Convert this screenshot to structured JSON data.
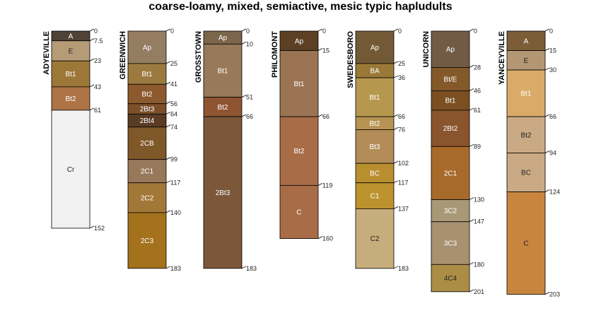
{
  "chart_data": {
    "type": "soil-profile",
    "title": "coarse-loamy, mixed, semiactive, mesic typic hapludults",
    "depth_unit": "cm",
    "profiles": [
      {
        "name": "ADYEVILLE",
        "horizons": [
          {
            "name": "A",
            "top": 0,
            "bottom": 7.5,
            "color": "#4e4336",
            "text": "#ffffff"
          },
          {
            "name": "E",
            "top": 7.5,
            "bottom": 23,
            "color": "#b59b76",
            "text": "#222222"
          },
          {
            "name": "Bt1",
            "top": 23,
            "bottom": 43,
            "color": "#9c7738",
            "text": "#ffffff"
          },
          {
            "name": "Bt2",
            "top": 43,
            "bottom": 61,
            "color": "#ae7447",
            "text": "#ffffff"
          },
          {
            "name": "Cr",
            "top": 61,
            "bottom": 152,
            "color": "#f2f2f2",
            "text": "#222222"
          }
        ]
      },
      {
        "name": "GREENWICH",
        "horizons": [
          {
            "name": "Ap",
            "top": 0,
            "bottom": 25,
            "color": "#957d62",
            "text": "#ffffff"
          },
          {
            "name": "Bt1",
            "top": 25,
            "bottom": 41,
            "color": "#9c7a3f",
            "text": "#ffffff"
          },
          {
            "name": "Bt2",
            "top": 41,
            "bottom": 56,
            "color": "#8c5a2e",
            "text": "#ffffff"
          },
          {
            "name": "2Bt3",
            "top": 56,
            "bottom": 64,
            "color": "#7b4f29",
            "text": "#ffffff"
          },
          {
            "name": "2Bt4",
            "top": 64,
            "bottom": 74,
            "color": "#5a3c24",
            "text": "#ffffff"
          },
          {
            "name": "2CB",
            "top": 74,
            "bottom": 99,
            "color": "#7f5829",
            "text": "#ffffff"
          },
          {
            "name": "2C1",
            "top": 99,
            "bottom": 117,
            "color": "#98785a",
            "text": "#ffffff"
          },
          {
            "name": "2C2",
            "top": 117,
            "bottom": 140,
            "color": "#a27839",
            "text": "#ffffff"
          },
          {
            "name": "2C3",
            "top": 140,
            "bottom": 183,
            "color": "#a4711d",
            "text": "#ffffff"
          }
        ]
      },
      {
        "name": "GROSSTOWN",
        "horizons": [
          {
            "name": "Ap",
            "top": 0,
            "bottom": 10,
            "color": "#7b654b",
            "text": "#ffffff"
          },
          {
            "name": "Bt1",
            "top": 10,
            "bottom": 51,
            "color": "#98795a",
            "text": "#ffffff"
          },
          {
            "name": "Bt2",
            "top": 51,
            "bottom": 66,
            "color": "#8e5530",
            "text": "#ffffff"
          },
          {
            "name": "2Bt3",
            "top": 66,
            "bottom": 183,
            "color": "#7c573a",
            "text": "#ffffff"
          }
        ]
      },
      {
        "name": "PHILOMONT",
        "horizons": [
          {
            "name": "Ap",
            "top": 0,
            "bottom": 15,
            "color": "#5b4024",
            "text": "#ffffff"
          },
          {
            "name": "Bt1",
            "top": 15,
            "bottom": 66,
            "color": "#9a7352",
            "text": "#ffffff"
          },
          {
            "name": "Bt2",
            "top": 66,
            "bottom": 119,
            "color": "#a86c47",
            "text": "#ffffff"
          },
          {
            "name": "C",
            "top": 119,
            "bottom": 160,
            "color": "#a86d47",
            "text": "#ffffff"
          }
        ]
      },
      {
        "name": "SWEDESBORO",
        "horizons": [
          {
            "name": "Ap",
            "top": 0,
            "bottom": 25,
            "color": "#735a37",
            "text": "#ffffff"
          },
          {
            "name": "BA",
            "top": 25,
            "bottom": 36,
            "color": "#9a7938",
            "text": "#ffffff"
          },
          {
            "name": "Bt1",
            "top": 36,
            "bottom": 66,
            "color": "#b6974e",
            "text": "#ffffff"
          },
          {
            "name": "Bt2",
            "top": 66,
            "bottom": 76,
            "color": "#b69352",
            "text": "#ffffff"
          },
          {
            "name": "Bt3",
            "top": 76,
            "bottom": 102,
            "color": "#b38c58",
            "text": "#ffffff"
          },
          {
            "name": "BC",
            "top": 102,
            "bottom": 117,
            "color": "#b98e2e",
            "text": "#ffffff"
          },
          {
            "name": "C1",
            "top": 117,
            "bottom": 137,
            "color": "#bc922e",
            "text": "#ffffff"
          },
          {
            "name": "C2",
            "top": 137,
            "bottom": 183,
            "color": "#c8ad7c",
            "text": "#222222"
          }
        ]
      },
      {
        "name": "UNICORN",
        "horizons": [
          {
            "name": "Ap",
            "top": 0,
            "bottom": 28,
            "color": "#715b45",
            "text": "#ffffff"
          },
          {
            "name": "Bt/E",
            "top": 28,
            "bottom": 46,
            "color": "#83592a",
            "text": "#ffffff"
          },
          {
            "name": "Bt1",
            "top": 46,
            "bottom": 61,
            "color": "#7c4f22",
            "text": "#ffffff"
          },
          {
            "name": "2Bt2",
            "top": 61,
            "bottom": 89,
            "color": "#8a542d",
            "text": "#ffffff"
          },
          {
            "name": "2C1",
            "top": 89,
            "bottom": 130,
            "color": "#a86a2a",
            "text": "#ffffff"
          },
          {
            "name": "3C2",
            "top": 130,
            "bottom": 147,
            "color": "#a99876",
            "text": "#ffffff"
          },
          {
            "name": "3C3",
            "top": 147,
            "bottom": 180,
            "color": "#a7916f",
            "text": "#ffffff"
          },
          {
            "name": "4C4",
            "top": 180,
            "bottom": 201,
            "color": "#ab8d46",
            "text": "#222222"
          }
        ]
      },
      {
        "name": "YANCEYVILLE",
        "horizons": [
          {
            "name": "A",
            "top": 0,
            "bottom": 15,
            "color": "#7b5d38",
            "text": "#ffffff"
          },
          {
            "name": "E",
            "top": 15,
            "bottom": 30,
            "color": "#b39673",
            "text": "#222222"
          },
          {
            "name": "Bt1",
            "top": 30,
            "bottom": 66,
            "color": "#d9aa68",
            "text": "#ffffff"
          },
          {
            "name": "Bt2",
            "top": 66,
            "bottom": 94,
            "color": "#c9aa84",
            "text": "#222222"
          },
          {
            "name": "BC",
            "top": 94,
            "bottom": 124,
            "color": "#c9aa84",
            "text": "#222222"
          },
          {
            "name": "C",
            "top": 124,
            "bottom": 203,
            "color": "#c8853e",
            "text": "#222222"
          }
        ]
      }
    ]
  }
}
